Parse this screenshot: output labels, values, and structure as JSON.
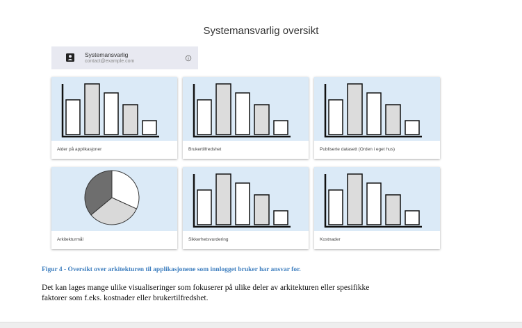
{
  "page": {
    "title": "Systemansvarlig oversikt"
  },
  "user": {
    "name": "Systemansvarlig",
    "email": "contact@example.com",
    "icon": "contact-card-icon",
    "info_icon": "info-icon"
  },
  "cards": [
    {
      "label": "Alder på applikasjoner",
      "thumbnail": "bar-chart-icon"
    },
    {
      "label": "Brukertilfredshet",
      "thumbnail": "bar-chart-icon"
    },
    {
      "label": "Publiserte datasett (Orden i eget hus)",
      "thumbnail": "bar-chart-icon"
    },
    {
      "label": "Arkitekturmål",
      "thumbnail": "pie-chart-icon"
    },
    {
      "label": "Sikkerhetsvurdering",
      "thumbnail": "bar-chart-icon"
    },
    {
      "label": "Kostnader",
      "thumbnail": "bar-chart-icon"
    }
  ],
  "caption": "Figur 4 - Oversikt over arkitekturen til applikasjonene som innlogget bruker har ansvar for.",
  "body": {
    "line1": "Det kan lages mange ulike visualiseringer som fokuserer på ulike deler av arkitekturen eller spesifikke",
    "line2": "faktorer som f.eks. kostnader eller brukertilfredshet."
  },
  "colors": {
    "thumb_bg": "#dbeaf7",
    "chip_bg": "#e8e9f1",
    "caption": "#3f7fbf",
    "pie_dark": "#6e6e6e",
    "pie_light": "#d9d9d9"
  }
}
